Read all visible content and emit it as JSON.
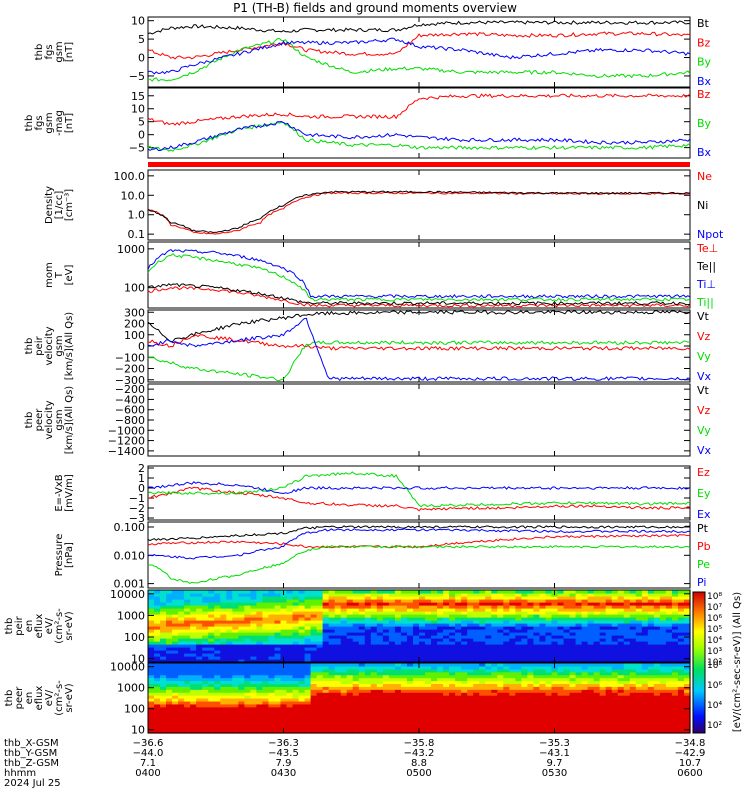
{
  "title": "P1 (TH-B) fields and ground moments overview",
  "footer": {
    "row_labels": [
      "thb_X-GSM",
      "thb_Y-GSM",
      "thb_Z-GSM",
      "hhmm",
      "2024 Jul 25"
    ],
    "columns": [
      {
        "x": "-36.6",
        "y": "-44.0",
        "z": "7.1",
        "time": "0400"
      },
      {
        "x": "-36.3",
        "y": "-43.5",
        "z": "7.9",
        "time": "0430"
      },
      {
        "x": "-35.8",
        "y": "-43.2",
        "z": "8.8",
        "time": "0500"
      },
      {
        "x": "-35.3",
        "y": "-43.1",
        "z": "9.7",
        "time": "0530"
      },
      {
        "x": "-34.8",
        "y": "-42.9",
        "z": "10.7",
        "time": "0600"
      }
    ]
  },
  "colorbar": {
    "label": "[eV/(cm^2-sec-sr-eV)] (All Qs)",
    "ticks_upper": [
      "10^8",
      "10^7",
      "10^6",
      "10^5",
      "10^4",
      "10^3",
      "10^2"
    ],
    "ticks_lower": [
      "10^8",
      "10^6",
      "10^4",
      "10^2"
    ]
  },
  "chart_data": [
    {
      "type": "line",
      "id": "fgs_gsm",
      "ylabel": [
        "thb",
        "fgs",
        "gsm",
        "[nT]"
      ],
      "ylim": [
        -8,
        11
      ],
      "yticks": [
        10,
        5,
        0,
        -5
      ],
      "xlim": [
        0,
        120
      ],
      "xtick_labels": [
        "0400",
        "0430",
        "0500",
        "0530",
        "0600"
      ],
      "series": [
        {
          "name": "Bt",
          "color": "#000000",
          "x": [
            0,
            5,
            10,
            20,
            30,
            35,
            45,
            55,
            60,
            70,
            80,
            90,
            100,
            110,
            120
          ],
          "values": [
            6.5,
            8,
            8.5,
            8,
            7,
            7.5,
            7.5,
            7.5,
            9,
            9.5,
            9.5,
            9.5,
            9.5,
            9.5,
            9.5
          ]
        },
        {
          "name": "Bz",
          "color": "#ff0000",
          "x": [
            0,
            5,
            10,
            20,
            30,
            35,
            45,
            55,
            60,
            70,
            80,
            90,
            100,
            110,
            120
          ],
          "values": [
            2,
            0,
            0,
            2,
            4,
            2,
            1,
            1,
            6,
            6.5,
            6,
            6,
            6.5,
            6.5,
            6
          ]
        },
        {
          "name": "By",
          "color": "#00dd00",
          "x": [
            0,
            5,
            10,
            20,
            30,
            35,
            45,
            55,
            60,
            70,
            80,
            90,
            100,
            110,
            120
          ],
          "values": [
            -6,
            -6,
            -4,
            2,
            5,
            0,
            -4,
            -3,
            -3,
            -4,
            -4,
            -4,
            -5,
            -5,
            -4
          ]
        },
        {
          "name": "Bx",
          "color": "#0000ff",
          "x": [
            0,
            5,
            10,
            20,
            30,
            35,
            45,
            55,
            60,
            70,
            80,
            90,
            100,
            110,
            120
          ],
          "values": [
            -4,
            -4,
            -2,
            1,
            4,
            4,
            4,
            5,
            3,
            2,
            0,
            1,
            2,
            2,
            1
          ]
        }
      ]
    },
    {
      "type": "line",
      "id": "fgs_gsm_mag",
      "ylabel": [
        "thb",
        "fgs",
        "gsm",
        "-mag",
        "[nT]"
      ],
      "ylim": [
        -9,
        18
      ],
      "yticks": [
        15,
        10,
        5,
        0,
        -5
      ],
      "xlim": [
        0,
        120
      ],
      "series": [
        {
          "name": "Bz",
          "color": "#ff0000",
          "x": [
            0,
            5,
            10,
            20,
            30,
            35,
            45,
            55,
            60,
            70,
            80,
            90,
            100,
            110,
            120
          ],
          "values": [
            6,
            4,
            5,
            7,
            8,
            7,
            7,
            7,
            14,
            15,
            15,
            15,
            15,
            15,
            15
          ]
        },
        {
          "name": "By",
          "color": "#00dd00",
          "x": [
            0,
            5,
            10,
            20,
            30,
            35,
            45,
            55,
            60,
            70,
            80,
            90,
            100,
            110,
            120
          ],
          "values": [
            -5,
            -6,
            -4,
            2,
            5,
            -2,
            -4,
            -4,
            -5,
            -5,
            -5,
            -5,
            -5,
            -5,
            -4
          ]
        },
        {
          "name": "Bx",
          "color": "#0000ff",
          "x": [
            0,
            5,
            10,
            20,
            30,
            35,
            45,
            55,
            60,
            70,
            80,
            90,
            100,
            110,
            120
          ],
          "values": [
            -6,
            -5,
            -3,
            2,
            5,
            0,
            -1,
            0,
            -1,
            -2,
            -2,
            -2,
            -3,
            -3,
            -2
          ]
        }
      ]
    },
    {
      "type": "line",
      "id": "density",
      "log": true,
      "ylabel": [
        "Density",
        "[1/cc]",
        "[cm^-3]"
      ],
      "ylim": [
        0.05,
        200
      ],
      "yticks": [
        100,
        10,
        1,
        0.1
      ],
      "ytick_labels": [
        "100.0",
        "10.0",
        "1.0",
        "0.1"
      ],
      "xlim": [
        0,
        120
      ],
      "series": [
        {
          "name": "Ne",
          "color": "#ff0000",
          "x": [
            0,
            5,
            10,
            15,
            20,
            25,
            30,
            35,
            40,
            60,
            90,
            120
          ],
          "values": [
            2,
            0.3,
            0.12,
            0.1,
            0.15,
            0.4,
            2,
            8,
            13,
            13,
            12,
            12
          ]
        },
        {
          "name": "Ni",
          "color": "#000000",
          "x": [
            0,
            5,
            10,
            15,
            20,
            25,
            30,
            35,
            40,
            60,
            90,
            120
          ],
          "values": [
            1.8,
            0.4,
            0.15,
            0.12,
            0.2,
            0.6,
            3,
            10,
            15,
            15,
            13,
            13
          ]
        },
        {
          "name": "Npot",
          "color": "#0000ff",
          "x": [],
          "values": []
        }
      ]
    },
    {
      "type": "line",
      "id": "temperature",
      "log": true,
      "ylabel": [
        "mom",
        "T",
        "[eV]"
      ],
      "ylim": [
        30,
        1500
      ],
      "yticks": [
        1000,
        100
      ],
      "ytick_labels": [
        "1000",
        "100"
      ],
      "xlim": [
        0,
        120
      ],
      "series": [
        {
          "name": "Te⊥",
          "color": "#ff0000",
          "x": [
            0,
            5,
            15,
            25,
            33,
            36,
            60,
            120
          ],
          "values": [
            80,
            100,
            90,
            60,
            40,
            35,
            35,
            35
          ]
        },
        {
          "name": "Te||",
          "color": "#000000",
          "x": [
            0,
            5,
            15,
            25,
            33,
            36,
            60,
            120
          ],
          "values": [
            100,
            120,
            100,
            70,
            45,
            40,
            40,
            40
          ]
        },
        {
          "name": "Ti⊥",
          "color": "#0000ff",
          "x": [
            0,
            5,
            15,
            25,
            33,
            36,
            60,
            120
          ],
          "values": [
            300,
            900,
            800,
            500,
            200,
            60,
            60,
            60
          ]
        },
        {
          "name": "Ti||",
          "color": "#00dd00",
          "x": [
            0,
            5,
            15,
            25,
            33,
            36,
            60,
            120
          ],
          "values": [
            250,
            700,
            500,
            300,
            120,
            50,
            50,
            50
          ]
        }
      ]
    },
    {
      "type": "line",
      "id": "peir_velocity",
      "ylabel": [
        "thb",
        "peir",
        "velocity",
        "gsm",
        "[km/s](All Qs)"
      ],
      "ylim": [
        -320,
        320
      ],
      "yticks": [
        300,
        200,
        100,
        0,
        -100,
        -200,
        -300
      ],
      "xlim": [
        0,
        120
      ],
      "series": [
        {
          "name": "Vt",
          "color": "#000000",
          "x": [
            0,
            5,
            10,
            20,
            30,
            35,
            40,
            60,
            90,
            120
          ],
          "values": [
            200,
            50,
            100,
            200,
            250,
            280,
            290,
            300,
            300,
            300
          ]
        },
        {
          "name": "Vz",
          "color": "#ff0000",
          "x": [
            0,
            5,
            10,
            20,
            30,
            35,
            40,
            60,
            90,
            120
          ],
          "values": [
            50,
            0,
            100,
            50,
            0,
            0,
            -20,
            -20,
            -20,
            -20
          ]
        },
        {
          "name": "Vy",
          "color": "#00dd00",
          "x": [
            0,
            5,
            10,
            20,
            30,
            35,
            40,
            60,
            90,
            120
          ],
          "values": [
            -100,
            -150,
            -200,
            -250,
            -300,
            20,
            30,
            30,
            30,
            30
          ]
        },
        {
          "name": "Vx",
          "color": "#0000ff",
          "x": [
            0,
            5,
            10,
            20,
            30,
            35,
            40,
            60,
            90,
            120
          ],
          "values": [
            0,
            50,
            0,
            50,
            100,
            250,
            -290,
            -290,
            -290,
            -290
          ]
        }
      ]
    },
    {
      "type": "line",
      "id": "peer_velocity",
      "ylabel": [
        "thb",
        "peer",
        "velocity",
        "gsm",
        "[km/s](All Qs)"
      ],
      "ylim": [
        -1500,
        -100
      ],
      "yticks": [
        -200,
        -400,
        -600,
        -800,
        -1000,
        -1200,
        -1400
      ],
      "xlim": [
        0,
        120
      ],
      "series": [
        {
          "name": "Vt",
          "color": "#000000",
          "x": [],
          "values": []
        },
        {
          "name": "Vz",
          "color": "#ff0000",
          "x": [],
          "values": []
        },
        {
          "name": "Vy",
          "color": "#00dd00",
          "x": [],
          "values": []
        },
        {
          "name": "Vx",
          "color": "#0000ff",
          "x": [],
          "values": []
        }
      ]
    },
    {
      "type": "line",
      "id": "efield",
      "ylabel": [
        "E=-VxB",
        "[mV/m]"
      ],
      "ylim": [
        -3.2,
        2.2
      ],
      "yticks": [
        2,
        1,
        0,
        -1,
        -2,
        -3
      ],
      "xlim": [
        0,
        120
      ],
      "series": [
        {
          "name": "Ez",
          "color": "#ff0000",
          "x": [
            0,
            10,
            20,
            30,
            35,
            45,
            55,
            60,
            70,
            80,
            90,
            100,
            110,
            120
          ],
          "values": [
            -1,
            0,
            -0.5,
            -1,
            -1.5,
            -1.7,
            -1.8,
            -2.2,
            -2,
            -2,
            -1.8,
            -1.8,
            -2,
            -2
          ]
        },
        {
          "name": "Ey",
          "color": "#00dd00",
          "x": [
            0,
            10,
            20,
            30,
            35,
            45,
            55,
            60,
            70,
            80,
            90,
            100,
            110,
            120
          ],
          "values": [
            -0.5,
            -0.5,
            -0.5,
            0,
            1.2,
            1.5,
            1.2,
            -1.8,
            -1.7,
            -1.6,
            -1.5,
            -1.5,
            -1.6,
            -1.5
          ]
        },
        {
          "name": "Ex",
          "color": "#0000ff",
          "x": [
            0,
            10,
            20,
            30,
            35,
            45,
            55,
            60,
            70,
            80,
            90,
            100,
            110,
            120
          ],
          "values": [
            0,
            0.5,
            0.3,
            -0.5,
            0,
            0,
            0,
            0,
            0,
            0,
            0,
            0,
            0,
            0
          ]
        }
      ]
    },
    {
      "type": "line",
      "id": "pressure",
      "log": true,
      "ylabel": [
        "Pressure",
        "[nPa]"
      ],
      "ylim": [
        0.0007,
        0.15
      ],
      "yticks": [
        0.1,
        0.01,
        0.001
      ],
      "ytick_labels": [
        "0.100",
        "0.010",
        "0.001"
      ],
      "xlim": [
        0,
        120
      ],
      "series": [
        {
          "name": "Pt",
          "color": "#000000",
          "x": [
            0,
            10,
            20,
            30,
            35,
            40,
            60,
            90,
            120
          ],
          "values": [
            0.035,
            0.04,
            0.05,
            0.06,
            0.09,
            0.1,
            0.1,
            0.1,
            0.1
          ]
        },
        {
          "name": "Pb",
          "color": "#ff0000",
          "x": [
            0,
            10,
            20,
            30,
            35,
            40,
            60,
            90,
            120
          ],
          "values": [
            0.025,
            0.028,
            0.03,
            0.025,
            0.02,
            0.02,
            0.02,
            0.045,
            0.05
          ]
        },
        {
          "name": "Pe",
          "color": "#00dd00",
          "x": [
            0,
            5,
            10,
            20,
            30,
            35,
            40,
            60,
            90,
            120
          ],
          "values": [
            0.005,
            0.0015,
            0.001,
            0.002,
            0.005,
            0.015,
            0.02,
            0.02,
            0.02,
            0.02
          ]
        },
        {
          "name": "Pi",
          "color": "#0000ff",
          "x": [
            0,
            10,
            20,
            30,
            35,
            40,
            60,
            90,
            120
          ],
          "values": [
            0.01,
            0.008,
            0.01,
            0.02,
            0.06,
            0.08,
            0.08,
            0.07,
            0.07
          ]
        }
      ]
    },
    {
      "type": "heatmap",
      "id": "peir_eflux",
      "ylabel": [
        "thb",
        "peir",
        "en",
        "eflux",
        "eV/",
        "(cm^2-s-",
        "sr-eV)"
      ],
      "ylim": [
        7,
        15000
      ],
      "log": true,
      "yticks": [
        10000,
        1000,
        100,
        10
      ],
      "ytick_labels": [
        "10000",
        "1000",
        "100",
        "10"
      ],
      "xlim": [
        0,
        120
      ]
    },
    {
      "type": "heatmap",
      "id": "peer_eflux",
      "ylabel": [
        "thb",
        "peer",
        "en",
        "eflux",
        "eV/",
        "(cm^2-s-",
        "sr-eV)"
      ],
      "ylim": [
        7,
        15000
      ],
      "log": true,
      "yticks": [
        10000,
        1000,
        100,
        10
      ],
      "ytick_labels": [
        "10000",
        "1000",
        "100",
        "10"
      ],
      "xlim": [
        0,
        120
      ]
    }
  ]
}
